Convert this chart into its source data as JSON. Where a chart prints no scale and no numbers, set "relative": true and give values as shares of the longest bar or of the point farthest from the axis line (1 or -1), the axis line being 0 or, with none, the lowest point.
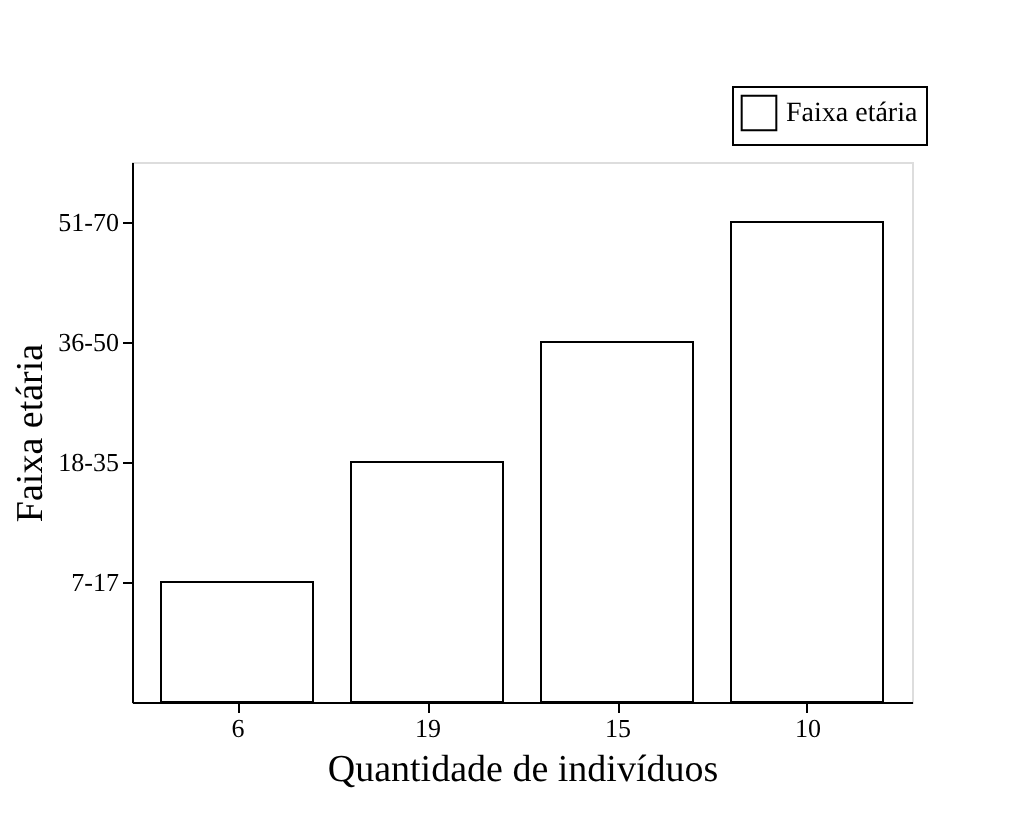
{
  "chart_data": {
    "type": "bar",
    "xlabel": "Quantidade de indivíduos",
    "ylabel": "Faixa etária",
    "categories": [
      "6",
      "19",
      "15",
      "10"
    ],
    "y_categories": [
      "51-70",
      "36-50",
      "18-35",
      "7-17"
    ],
    "series": [
      {
        "name": "Faixa etária",
        "color": "#ffffff",
        "values": [
          0.25,
          0.5,
          0.75,
          1
        ]
      }
    ],
    "relative": true,
    "grid": false,
    "legend": "top right"
  }
}
